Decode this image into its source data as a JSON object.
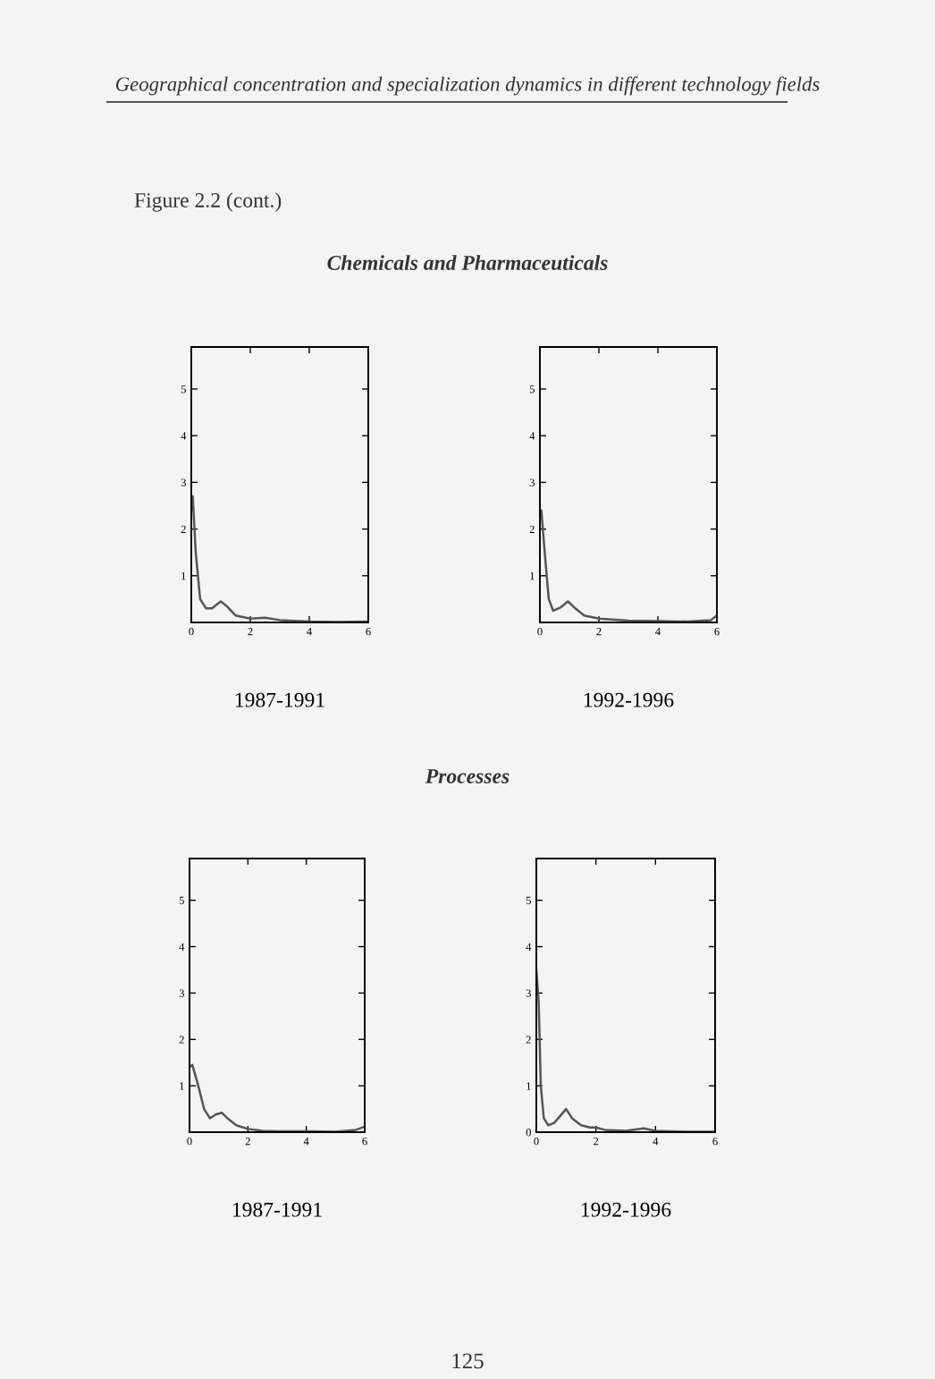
{
  "chart_data": [
    {
      "type": "line",
      "annotations": [
        "Geographical concentration and specialization dynamics in different technology fields",
        "Figure 2.2 (cont.)",
        "Chemicals and Pharmaceuticals"
      ],
      "xlabel": "1987-1991",
      "x": [
        0,
        0.05,
        0.15,
        0.3,
        0.5,
        0.7,
        1.0,
        1.2,
        1.5,
        2,
        2.5,
        3,
        4,
        5,
        6
      ],
      "series": [
        {
          "color": "#555555",
          "values": [
            2.4,
            2.7,
            1.5,
            0.5,
            0.3,
            0.3,
            0.45,
            0.35,
            0.15,
            0.08,
            0.1,
            0.05,
            0.02,
            0.01,
            0.02
          ]
        }
      ],
      "xlim": [
        0,
        6
      ],
      "xticks": [
        0,
        2,
        4,
        6
      ],
      "ylim": [
        0,
        5.9
      ],
      "yticks": [
        1,
        2,
        3,
        4,
        5
      ],
      "grid": false,
      "legend": false
    },
    {
      "type": "line",
      "xlabel": "1992-1996",
      "x": [
        0,
        0.05,
        0.15,
        0.3,
        0.45,
        0.7,
        0.95,
        1.2,
        1.5,
        2,
        3,
        4,
        5,
        5.8,
        6
      ],
      "series": [
        {
          "color": "#555555",
          "values": [
            2.3,
            2.4,
            1.6,
            0.5,
            0.25,
            0.32,
            0.45,
            0.3,
            0.15,
            0.08,
            0.04,
            0.03,
            0.02,
            0.05,
            0.15
          ]
        }
      ],
      "xlim": [
        0,
        6
      ],
      "xticks": [
        0,
        2,
        4,
        6
      ],
      "ylim": [
        0,
        5.9
      ],
      "yticks": [
        1,
        2,
        3,
        4,
        5
      ],
      "grid": false,
      "legend": false
    },
    {
      "type": "line",
      "annotations": [
        "Processes"
      ],
      "xlabel": "1987-1991",
      "x": [
        0,
        0.1,
        0.3,
        0.5,
        0.7,
        0.9,
        1.1,
        1.3,
        1.6,
        2,
        2.5,
        3,
        4,
        5,
        5.7,
        6
      ],
      "series": [
        {
          "color": "#555555",
          "values": [
            1.4,
            1.45,
            1.0,
            0.5,
            0.3,
            0.38,
            0.42,
            0.3,
            0.15,
            0.07,
            0.03,
            0.02,
            0.02,
            0.01,
            0.05,
            0.12
          ]
        }
      ],
      "xlim": [
        0,
        6
      ],
      "xticks": [
        0,
        2,
        4,
        6
      ],
      "ylim": [
        0,
        5.9
      ],
      "yticks": [
        1,
        2,
        3,
        4,
        5
      ],
      "grid": false,
      "legend": false
    },
    {
      "type": "line",
      "annotations": [
        "125"
      ],
      "xlabel": "1992-1996",
      "x": [
        0,
        0.08,
        0.15,
        0.25,
        0.4,
        0.6,
        0.8,
        1.0,
        1.2,
        1.5,
        1.8,
        2.0,
        2.3,
        3,
        3.6,
        4,
        5,
        6
      ],
      "series": [
        {
          "color": "#555555",
          "values": [
            3.5,
            2.8,
            1.0,
            0.3,
            0.15,
            0.2,
            0.35,
            0.5,
            0.3,
            0.15,
            0.1,
            0.1,
            0.05,
            0.03,
            0.08,
            0.03,
            0.01,
            0.01
          ]
        }
      ],
      "xlim": [
        0,
        6
      ],
      "xticks": [
        0,
        2,
        4,
        6
      ],
      "ylim": [
        0,
        5.9
      ],
      "yticks": [
        0,
        1,
        2,
        3,
        4,
        5
      ],
      "grid": false,
      "legend": false
    }
  ]
}
